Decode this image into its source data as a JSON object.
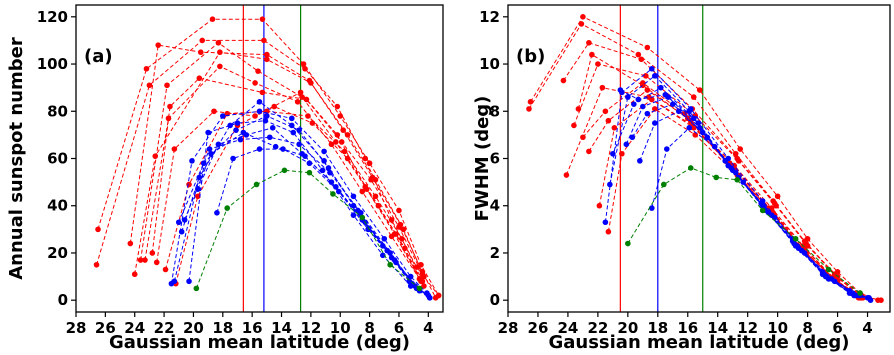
{
  "figure": {
    "width": 894,
    "height": 355
  },
  "chart_data": [
    {
      "type": "line",
      "panel_label": "(a)",
      "xlabel": "Gaussian mean latitude (deg)",
      "ylabel": "Annual sunspot number",
      "xlim": [
        28,
        3
      ],
      "ylim": [
        -5,
        125
      ],
      "xticks": [
        28,
        26,
        24,
        22,
        20,
        18,
        16,
        14,
        12,
        10,
        8,
        6,
        4
      ],
      "yticks": [
        0,
        20,
        40,
        60,
        80,
        100,
        120
      ],
      "grid": false,
      "vlines": [
        {
          "x": 16.6,
          "color": "#ff0000"
        },
        {
          "x": 15.2,
          "color": "#0000ff"
        },
        {
          "x": 12.7,
          "color": "#008000"
        }
      ],
      "series": [
        {
          "color": "#ff0000",
          "x": [
            26.5,
            23.2,
            18.7,
            15.3,
            12.5,
            10.0,
            8.0,
            6.0,
            4.5,
            3.3
          ],
          "values": [
            30,
            98,
            119,
            119,
            100,
            78,
            58,
            38,
            15,
            2
          ]
        },
        {
          "color": "#ff0000",
          "x": [
            26.6,
            23.0,
            19.4,
            15.2,
            12.4,
            10.2,
            8.3,
            6.5,
            4.8,
            3.3
          ],
          "values": [
            15,
            91,
            110,
            110,
            98,
            82,
            60,
            34,
            14,
            2
          ]
        },
        {
          "color": "#ff0000",
          "x": [
            24.3,
            22.4,
            19.5,
            15.0,
            12.1,
            9.8,
            7.8,
            5.9,
            4.4,
            3.5
          ],
          "values": [
            24,
            108,
            105,
            104,
            93,
            72,
            52,
            32,
            12,
            1
          ]
        },
        {
          "color": "#ff0000",
          "x": [
            24.0,
            22.6,
            18.2,
            15.0,
            12.0,
            9.5,
            7.6,
            5.7,
            4.3
          ],
          "values": [
            11,
            61,
            105,
            102,
            92,
            70,
            51,
            30,
            10
          ]
        },
        {
          "color": "#ff0000",
          "x": [
            23.6,
            21.8,
            18.3,
            15.6,
            12.6,
            10.3,
            8.3,
            6.3,
            4.6
          ],
          "values": [
            17,
            91,
            109,
            97,
            86,
            67,
            48,
            28,
            9
          ]
        },
        {
          "color": "#ff0000",
          "x": [
            23.3,
            21.7,
            18.2,
            15.8,
            12.9,
            10.6,
            8.5,
            6.5,
            4.6
          ],
          "values": [
            17,
            77,
            99,
            92,
            84,
            66,
            46,
            27,
            9
          ]
        },
        {
          "color": "#ff0000",
          "x": [
            22.8,
            21.6,
            19.6,
            15.3,
            12.3,
            9.9,
            7.9,
            6.0,
            4.4
          ],
          "values": [
            20,
            82,
            94,
            88,
            85,
            67,
            51,
            31,
            11
          ]
        },
        {
          "color": "#ff0000",
          "x": [
            22.5,
            21.3,
            18.6,
            15.8,
            12.7,
            10.2,
            8.2,
            6.2,
            4.5
          ],
          "values": [
            16,
            64,
            80,
            78,
            88,
            70,
            47,
            28,
            8
          ]
        },
        {
          "color": "#ff0000",
          "x": [
            21.9,
            20.3,
            17.7,
            15.0,
            12.2,
            9.7,
            7.6,
            5.8,
            4.4
          ],
          "values": [
            13,
            49,
            79,
            80,
            78,
            63,
            44,
            26,
            8
          ]
        },
        {
          "color": "#ff0000",
          "x": [
            21.2,
            19.7,
            17.0,
            14.5,
            11.9,
            9.5,
            7.4,
            5.6,
            4.3
          ],
          "values": [
            7,
            44,
            74,
            82,
            75,
            60,
            40,
            22,
            6
          ]
        },
        {
          "color": "#0000ff",
          "x": [
            21.5,
            20.1,
            18.0,
            15.5,
            13.3,
            11.1,
            9.1,
            7.0,
            5.2,
            4.1
          ],
          "values": [
            7,
            59,
            78,
            80,
            77,
            63,
            44,
            26,
            10,
            3
          ]
        },
        {
          "color": "#0000ff",
          "x": [
            21.3,
            19.6,
            17.5,
            15.5,
            13.3,
            11.1,
            9.1,
            7.1,
            5.3,
            4.0
          ],
          "values": [
            8,
            52,
            74,
            84,
            74,
            59,
            40,
            23,
            8,
            2
          ]
        },
        {
          "color": "#0000ff",
          "x": [
            20.8,
            19.3,
            17.1,
            15.0,
            12.8,
            10.8,
            8.8,
            6.8,
            5.1,
            3.9
          ],
          "values": [
            29,
            58,
            72,
            78,
            72,
            56,
            38,
            21,
            7,
            1
          ]
        },
        {
          "color": "#0000ff",
          "x": [
            20.3,
            19.0,
            17.0,
            15.1,
            13.2,
            11.2,
            9.1,
            7.1,
            5.2,
            3.9
          ],
          "values": [
            8,
            71,
            75,
            76,
            71,
            55,
            36,
            19,
            6,
            1
          ]
        },
        {
          "color": "#0000ff",
          "x": [
            21.0,
            18.9,
            16.8,
            14.8,
            12.8,
            10.7,
            8.6,
            6.6,
            4.9
          ],
          "values": [
            33,
            64,
            68,
            69,
            66,
            54,
            37,
            20,
            6
          ]
        },
        {
          "color": "#0000ff",
          "x": [
            20.6,
            18.8,
            16.6,
            14.4,
            12.4,
            10.3,
            8.3,
            6.3,
            4.7
          ],
          "values": [
            34,
            62,
            71,
            65,
            61,
            48,
            33,
            17,
            5
          ]
        },
        {
          "color": "#0000ff",
          "x": [
            19.7,
            18.3,
            16.4,
            14.6,
            12.6,
            10.6,
            8.5,
            6.5,
            4.8
          ],
          "values": [
            47,
            66,
            70,
            73,
            62,
            50,
            34,
            18,
            5
          ]
        },
        {
          "color": "#0000ff",
          "x": [
            18.4,
            17.3,
            15.5,
            13.9,
            12.1,
            10.1,
            8.1,
            6.2,
            4.6
          ],
          "values": [
            37,
            60,
            64,
            64,
            58,
            46,
            30,
            16,
            4
          ]
        },
        {
          "color": "#008000",
          "x": [
            19.8,
            17.7,
            15.7,
            13.8,
            12.1,
            10.5,
            8.5,
            6.6,
            4.6
          ],
          "values": [
            5,
            39,
            49,
            55,
            54,
            45,
            35,
            15,
            5
          ]
        }
      ]
    },
    {
      "type": "line",
      "panel_label": "(b)",
      "xlabel": "Gaussian mean latitude (deg)",
      "ylabel": "FWHM (deg)",
      "xlim": [
        28,
        2.5
      ],
      "ylim": [
        -0.5,
        12.5
      ],
      "xticks": [
        28,
        26,
        24,
        22,
        20,
        18,
        16,
        14,
        12,
        10,
        8,
        6,
        4
      ],
      "yticks": [
        0,
        2,
        4,
        6,
        8,
        10,
        12
      ],
      "grid": false,
      "vlines": [
        {
          "x": 20.5,
          "color": "#ff0000"
        },
        {
          "x": 18.0,
          "color": "#0000ff"
        },
        {
          "x": 15.0,
          "color": "#008000"
        }
      ],
      "series": [
        {
          "color": "#ff0000",
          "x": [
            26.5,
            23.0,
            18.7,
            15.2,
            12.5,
            10.0,
            8.0,
            6.0,
            4.5,
            3.3
          ],
          "values": [
            8.4,
            12.0,
            10.7,
            8.9,
            6.4,
            4.4,
            2.6,
            1.2,
            0.3,
            0
          ]
        },
        {
          "color": "#ff0000",
          "x": [
            26.6,
            23.1,
            19.3,
            15.6,
            12.8,
            10.3,
            8.2,
            6.2,
            4.6,
            3.1
          ],
          "values": [
            8.1,
            11.7,
            10.4,
            8.6,
            6.2,
            4.2,
            2.5,
            1.1,
            0.2,
            0
          ]
        },
        {
          "color": "#ff0000",
          "x": [
            24.3,
            22.6,
            19.1,
            15.7,
            12.7,
            10.2,
            8.1,
            6.1,
            4.5
          ],
          "values": [
            9.3,
            10.9,
            10.2,
            8.1,
            6.0,
            4.1,
            2.4,
            1.0,
            0.2
          ]
        },
        {
          "color": "#ff0000",
          "x": [
            23.6,
            22.0,
            18.8,
            15.5,
            12.6,
            10.1,
            8.0,
            6.0,
            4.4
          ],
          "values": [
            7.4,
            10.0,
            9.5,
            7.8,
            5.9,
            4.0,
            2.3,
            1.0,
            0.2
          ]
        },
        {
          "color": "#ff0000",
          "x": [
            23.3,
            22.4,
            19.0,
            15.8,
            12.9,
            10.4,
            8.3,
            6.3,
            4.6
          ],
          "values": [
            8.1,
            10.4,
            9.1,
            7.6,
            5.7,
            3.9,
            2.3,
            0.9,
            0.2
          ]
        },
        {
          "color": "#ff0000",
          "x": [
            23.0,
            21.5,
            19.0,
            16.2,
            13.2,
            10.6,
            8.4,
            6.3,
            4.6
          ],
          "values": [
            6.9,
            8.0,
            9.2,
            7.9,
            5.8,
            3.9,
            2.2,
            0.9,
            0.1
          ]
        },
        {
          "color": "#ff0000",
          "x": [
            24.1,
            21.7,
            18.6,
            15.7,
            12.9,
            10.4,
            8.2,
            6.2,
            4.5
          ],
          "values": [
            5.3,
            9.0,
            8.6,
            7.4,
            5.6,
            3.8,
            2.2,
            0.9,
            0.1
          ]
        },
        {
          "color": "#ff0000",
          "x": [
            22.6,
            21.3,
            18.7,
            16.0,
            13.1,
            10.5,
            8.3,
            6.2,
            4.5
          ],
          "values": [
            6.3,
            7.6,
            8.9,
            7.7,
            5.6,
            3.8,
            2.1,
            0.9,
            0.1
          ]
        },
        {
          "color": "#ff0000",
          "x": [
            21.9,
            20.9,
            18.4,
            15.6,
            12.8,
            10.3,
            8.2,
            6.1,
            4.4
          ],
          "values": [
            4.0,
            7.3,
            8.5,
            7.3,
            5.5,
            3.7,
            2.1,
            0.8,
            0.1
          ]
        },
        {
          "color": "#ff0000",
          "x": [
            21.3,
            20.4,
            18.2,
            15.5,
            12.7,
            10.2,
            8.1,
            6.0,
            4.3
          ],
          "values": [
            2.9,
            6.2,
            8.1,
            7.0,
            5.3,
            3.6,
            2.0,
            0.8,
            0.1
          ]
        },
        {
          "color": "#0000ff",
          "x": [
            21.5,
            20.4,
            18.4,
            15.8,
            13.3,
            11.0,
            9.0,
            7.0,
            5.2,
            4.0
          ],
          "values": [
            3.3,
            8.8,
            9.8,
            8.1,
            6.0,
            4.2,
            2.6,
            1.2,
            0.4,
            0.1
          ]
        },
        {
          "color": "#0000ff",
          "x": [
            21.2,
            20.0,
            18.2,
            15.9,
            13.5,
            11.1,
            9.0,
            7.0,
            5.2,
            3.9
          ],
          "values": [
            4.9,
            8.6,
            9.5,
            8.0,
            5.9,
            4.1,
            2.5,
            1.1,
            0.3,
            0.1
          ]
        },
        {
          "color": "#0000ff",
          "x": [
            21.0,
            19.6,
            17.8,
            15.6,
            13.3,
            11.0,
            8.9,
            6.9,
            5.1,
            3.8
          ],
          "values": [
            6.2,
            8.3,
            9.0,
            7.7,
            5.7,
            4.0,
            2.4,
            1.1,
            0.3,
            0
          ]
        },
        {
          "color": "#0000ff",
          "x": [
            20.5,
            19.3,
            17.5,
            15.3,
            13.1,
            10.9,
            8.8,
            6.8,
            5.0
          ],
          "values": [
            8.9,
            8.5,
            8.7,
            7.5,
            5.6,
            3.9,
            2.3,
            1.0,
            0.3
          ]
        },
        {
          "color": "#0000ff",
          "x": [
            20.1,
            19.0,
            17.3,
            15.2,
            13.0,
            10.8,
            8.7,
            6.7,
            4.9
          ],
          "values": [
            6.6,
            8.2,
            8.6,
            7.3,
            5.5,
            3.8,
            2.3,
            1.0,
            0.2
          ]
        },
        {
          "color": "#0000ff",
          "x": [
            19.7,
            18.7,
            17.0,
            15.0,
            12.8,
            10.6,
            8.6,
            6.6,
            4.8
          ],
          "values": [
            6.9,
            7.9,
            8.3,
            7.1,
            5.4,
            3.7,
            2.2,
            0.9,
            0.2
          ]
        },
        {
          "color": "#0000ff",
          "x": [
            19.2,
            18.2,
            16.6,
            14.7,
            12.6,
            10.4,
            8.4,
            6.4,
            4.6
          ],
          "values": [
            5.9,
            7.5,
            8.0,
            6.9,
            5.2,
            3.6,
            2.1,
            0.9,
            0.2
          ]
        },
        {
          "color": "#0000ff",
          "x": [
            18.4,
            17.4,
            15.9,
            14.2,
            12.3,
            10.2,
            8.2,
            6.2,
            4.5
          ],
          "values": [
            3.9,
            6.4,
            7.3,
            6.5,
            5.0,
            3.5,
            2.0,
            0.8,
            0.2
          ]
        },
        {
          "color": "#008000",
          "x": [
            20.0,
            17.6,
            15.8,
            14.1,
            12.7,
            11.0,
            8.8,
            6.6,
            4.5
          ],
          "values": [
            2.4,
            4.9,
            5.6,
            5.2,
            5.1,
            3.8,
            2.6,
            1.3,
            0.3
          ]
        }
      ]
    }
  ]
}
